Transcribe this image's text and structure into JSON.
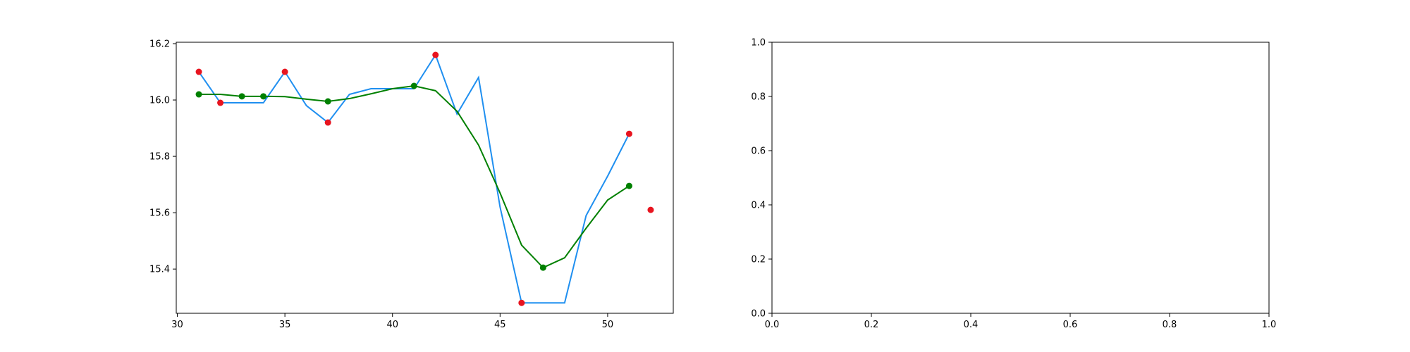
{
  "chart_data": [
    {
      "type": "line",
      "title": "",
      "xlabel": "",
      "ylabel": "",
      "xlim": [
        29.95,
        53.05
      ],
      "ylim": [
        15.243,
        16.205
      ],
      "xticks": [
        30,
        35,
        40,
        45,
        50
      ],
      "xtick_labels": [
        "30",
        "35",
        "40",
        "45",
        "50"
      ],
      "yticks": [
        15.4,
        15.6,
        15.8,
        16.0,
        16.2
      ],
      "ytick_labels": [
        "15.4",
        "15.6",
        "15.8",
        "16.0",
        "16.2"
      ],
      "grid": false,
      "series": [
        {
          "kind": "line",
          "color": "#1f8ff0",
          "points": [
            [
              31,
              16.1
            ],
            [
              32,
              15.99
            ],
            [
              33,
              15.99
            ],
            [
              34,
              15.99
            ],
            [
              35,
              16.1
            ],
            [
              36,
              15.98
            ],
            [
              37,
              15.92
            ],
            [
              38,
              16.02
            ],
            [
              39,
              16.04
            ],
            [
              40,
              16.04
            ],
            [
              41,
              16.04
            ],
            [
              42,
              16.16
            ],
            [
              43,
              15.95
            ],
            [
              44,
              16.08
            ],
            [
              45,
              15.62
            ],
            [
              46,
              15.28
            ],
            [
              47,
              15.28
            ],
            [
              48,
              15.28
            ],
            [
              49,
              15.59
            ],
            [
              50,
              15.73
            ],
            [
              51,
              15.88
            ]
          ]
        },
        {
          "kind": "line",
          "color": "#008000",
          "points": [
            [
              31,
              16.02
            ],
            [
              32,
              16.02
            ],
            [
              33,
              16.013
            ],
            [
              34,
              16.013
            ],
            [
              35,
              16.012
            ],
            [
              36,
              16.003
            ],
            [
              37,
              15.995
            ],
            [
              38,
              16.005
            ],
            [
              39,
              16.022
            ],
            [
              40,
              16.04
            ],
            [
              41,
              16.05
            ],
            [
              42,
              16.033
            ],
            [
              43,
              15.96
            ],
            [
              44,
              15.84
            ],
            [
              45,
              15.67
            ],
            [
              46,
              15.485
            ],
            [
              47,
              15.405
            ],
            [
              48,
              15.44
            ],
            [
              49,
              15.545
            ],
            [
              50,
              15.645
            ],
            [
              51,
              15.695
            ]
          ]
        },
        {
          "kind": "scatter",
          "color": "#008000",
          "points": [
            [
              31,
              16.02
            ],
            [
              33,
              16.013
            ],
            [
              34,
              16.013
            ],
            [
              37,
              15.995
            ],
            [
              41,
              16.05
            ],
            [
              47,
              15.405
            ],
            [
              51,
              15.695
            ]
          ]
        },
        {
          "kind": "scatter",
          "color": "#e8141f",
          "points": [
            [
              31,
              16.1
            ],
            [
              32,
              15.99
            ],
            [
              35,
              16.1
            ],
            [
              37,
              15.92
            ],
            [
              42,
              16.16
            ],
            [
              46,
              15.28
            ],
            [
              51,
              15.88
            ],
            [
              52,
              15.61
            ]
          ]
        }
      ]
    },
    {
      "type": "line",
      "title": "",
      "xlabel": "",
      "ylabel": "",
      "xlim": [
        0.0,
        1.0
      ],
      "ylim": [
        0.0,
        1.0
      ],
      "xticks": [
        0.0,
        0.2,
        0.4,
        0.6,
        0.8,
        1.0
      ],
      "xtick_labels": [
        "0.0",
        "0.2",
        "0.4",
        "0.6",
        "0.8",
        "1.0"
      ],
      "yticks": [
        0.0,
        0.2,
        0.4,
        0.6,
        0.8,
        1.0
      ],
      "ytick_labels": [
        "0.0",
        "0.2",
        "0.4",
        "0.6",
        "0.8",
        "1.0"
      ],
      "grid": false,
      "series": []
    }
  ]
}
